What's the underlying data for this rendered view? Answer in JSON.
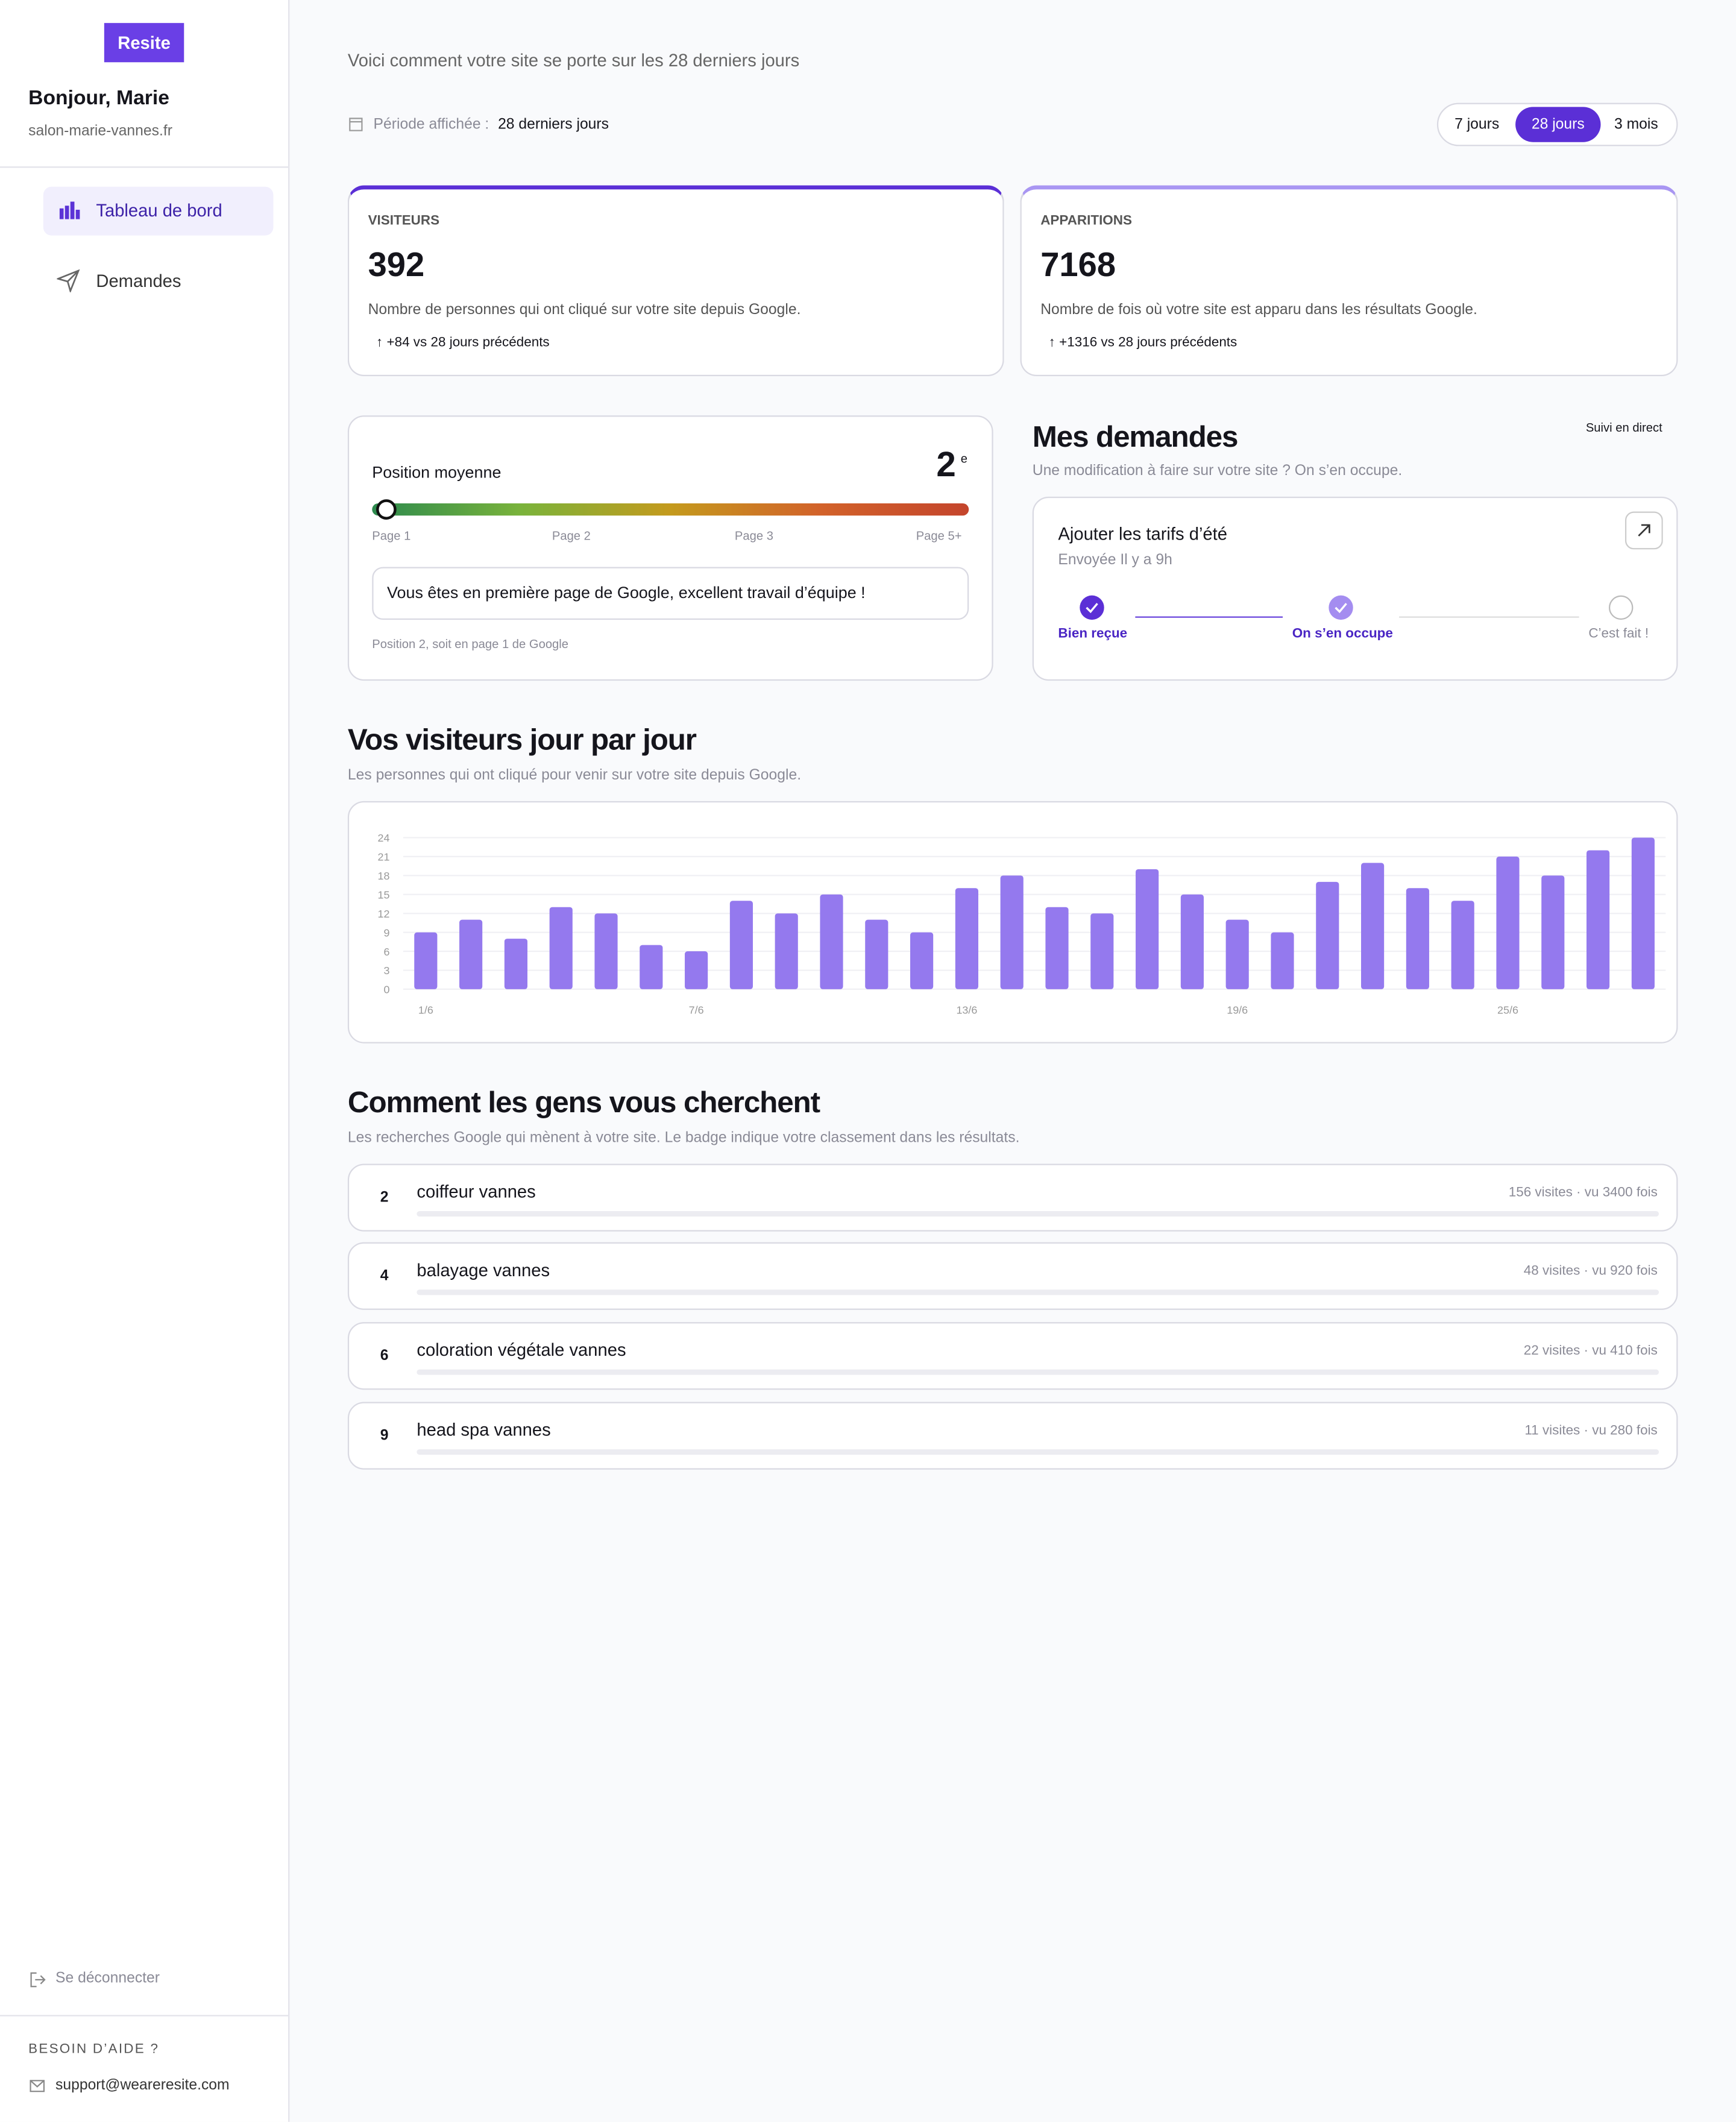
{
  "sidebar": {
    "logo": "Resite",
    "greeting": "Bonjour, Marie",
    "site": "salon-marie-vannes.fr",
    "nav": [
      "Tableau de bord",
      "Demandes"
    ],
    "logout": "Se déconnecter",
    "help_title": "BESOIN D’AIDE ?",
    "help_email": "support@weareresite.com"
  },
  "header": {
    "subtitle": "Voici comment votre site se porte sur les 28 derniers jours",
    "period_label": "Période affichée :",
    "period_value": "28 derniers jours",
    "ranges": [
      "7 jours",
      "28 jours",
      "3 mois"
    ]
  },
  "stats": [
    {
      "label": "VISITEURS",
      "value": 392,
      "description": "Nombre de personnes qui ont cliqué sur votre site depuis Google.",
      "delta": "↑ +84 vs 28 jours précédents"
    },
    {
      "label": "APPARITIONS",
      "value": 7168,
      "description": "Nombre de fois où votre site est apparu dans les résultats Google.",
      "delta": "↑ +1316 vs 28 jours précédents"
    }
  ],
  "position": {
    "title": "Position moyenne",
    "value": 2,
    "suffix": "e",
    "pages": [
      "Page 1",
      "Page 2",
      "Page 3",
      "Page 5+"
    ],
    "message": "Vous êtes en première page de Google, excellent travail d’équipe !",
    "note": "Position 2, soit en page 1 de Google"
  },
  "requests": {
    "title": "Mes demandes",
    "live": "Suivi en direct",
    "subtitle": "Une modification à faire sur votre site ? On s’en occupe.",
    "item": {
      "title": "Ajouter les tarifs d’été",
      "sent": "Envoyée Il y a 9h",
      "steps": [
        "Bien reçue",
        "On s’en occupe",
        "C’est fait !"
      ]
    }
  },
  "chart_data": {
    "type": "bar",
    "title": "Vos visiteurs jour par jour",
    "subtitle": "Les personnes qui ont cliqué pour venir sur votre site depuis Google.",
    "categories": [
      "1/6",
      null,
      null,
      null,
      null,
      null,
      "7/6",
      null,
      null,
      null,
      null,
      null,
      "13/6",
      null,
      null,
      null,
      null,
      null,
      "19/6",
      null,
      null,
      null,
      null,
      null,
      "25/6",
      null,
      null,
      null
    ],
    "values": [
      9,
      11,
      8,
      13,
      12,
      7,
      6,
      14,
      12,
      15,
      11,
      9,
      16,
      18,
      13,
      12,
      19,
      15,
      11,
      9,
      17,
      20,
      16,
      14,
      21,
      18,
      22,
      24
    ],
    "color": "#9479ee",
    "ylim": [
      0,
      24
    ],
    "yticks": [
      0,
      3,
      6,
      9,
      12,
      15,
      18,
      21,
      24
    ],
    "grid": true
  },
  "keywords": {
    "title": "Comment les gens vous cherchent",
    "subtitle": "Les recherches Google qui mènent à votre site. Le badge indique votre classement dans les résultats.",
    "rows": [
      {
        "rank": 2,
        "query": "coiffeur vannes",
        "stats": "156 visites · vu 3400 fois"
      },
      {
        "rank": 4,
        "query": "balayage vannes",
        "stats": "48 visites · vu 920 fois"
      },
      {
        "rank": 6,
        "query": "coloration végétale vannes",
        "stats": "22 visites · vu 410 fois"
      },
      {
        "rank": 9,
        "query": "head spa vannes",
        "stats": "11 visites · vu 280 fois"
      }
    ]
  }
}
